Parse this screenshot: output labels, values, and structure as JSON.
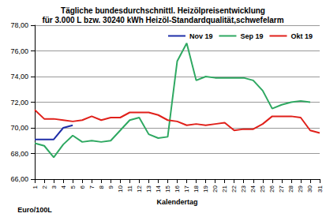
{
  "chart_data": {
    "type": "line",
    "title": "Tägliche bundesdurchschnittl. Heizölpreisentwicklung\nfür 3.000 L bzw. 30240 kWh Heizöl-Standardqualität,schwefelarm",
    "x_label": "Kalendertag",
    "y_label": "Euro/100L",
    "categories": [
      "1",
      "2",
      "3",
      "4",
      "5",
      "6",
      "7",
      "8",
      "9",
      "10",
      "11",
      "12",
      "13",
      "14",
      "15",
      "16",
      "17",
      "18",
      "19",
      "20",
      "21",
      "22",
      "23",
      "24",
      "25",
      "26",
      "27",
      "28",
      "29",
      "30",
      "31"
    ],
    "series": [
      {
        "name": "Nov 19",
        "color": "#1f2ea8",
        "values": [
          69.1,
          69.1,
          69.1,
          70.0,
          70.2,
          null,
          null,
          null,
          null,
          null,
          null,
          null,
          null,
          null,
          null,
          null,
          null,
          null,
          null,
          null,
          null,
          null,
          null,
          null,
          null,
          null,
          null,
          null,
          null,
          null,
          null
        ]
      },
      {
        "name": "Sep 19",
        "color": "#2ea861",
        "values": [
          68.8,
          68.6,
          67.7,
          68.7,
          69.4,
          68.9,
          69.0,
          68.9,
          69.0,
          69.8,
          70.6,
          70.8,
          69.5,
          69.2,
          69.3,
          75.2,
          76.6,
          73.7,
          74.0,
          73.9,
          73.9,
          73.9,
          73.9,
          73.7,
          72.9,
          71.5,
          71.8,
          72.0,
          72.1,
          72.0,
          null
        ]
      },
      {
        "name": "Okt 19",
        "color": "#e0201a",
        "values": [
          71.4,
          70.7,
          70.7,
          70.6,
          70.5,
          70.6,
          70.9,
          70.6,
          70.8,
          70.8,
          71.2,
          71.2,
          71.2,
          71.0,
          70.6,
          70.5,
          70.2,
          70.3,
          70.2,
          70.3,
          70.4,
          69.8,
          69.9,
          69.9,
          70.3,
          70.9,
          70.9,
          70.9,
          70.8,
          69.8,
          69.6
        ]
      }
    ],
    "ylim": [
      66,
      78
    ],
    "yticks": [
      {
        "value": 66,
        "label": "66,00"
      },
      {
        "value": 68,
        "label": "68,00"
      },
      {
        "value": 70,
        "label": "70,00"
      },
      {
        "value": 72,
        "label": "72,00"
      },
      {
        "value": 74,
        "label": "74,00"
      },
      {
        "value": 76,
        "label": "76,00"
      },
      {
        "value": 78,
        "label": "78,00"
      }
    ],
    "grid": true,
    "legend": "top-right"
  }
}
